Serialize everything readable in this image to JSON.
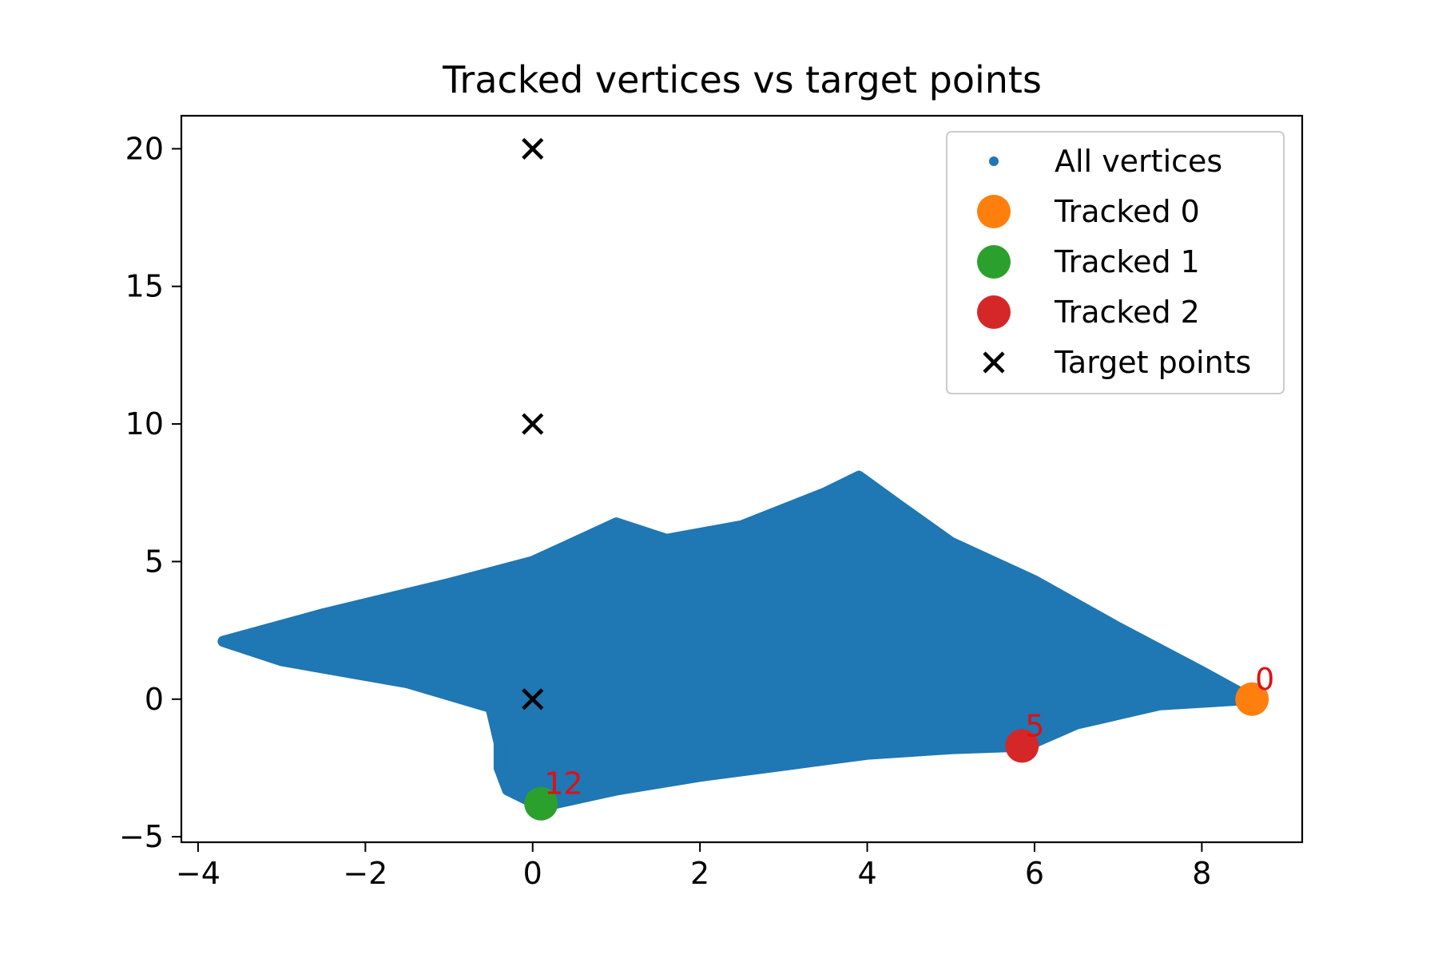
{
  "chart_data": {
    "type": "scatter",
    "title": "Tracked vertices vs target points",
    "xlabel": "",
    "ylabel": "",
    "xlim": [
      -4.2,
      9.2
    ],
    "ylim": [
      -5.2,
      21.2
    ],
    "xticks": [
      {
        "value": -4,
        "label": "−4"
      },
      {
        "value": -2,
        "label": "−2"
      },
      {
        "value": 0,
        "label": "0"
      },
      {
        "value": 2,
        "label": "2"
      },
      {
        "value": 4,
        "label": "4"
      },
      {
        "value": 6,
        "label": "6"
      },
      {
        "value": 8,
        "label": "8"
      }
    ],
    "yticks": [
      {
        "value": -5,
        "label": "−5"
      },
      {
        "value": 0,
        "label": "0"
      },
      {
        "value": 5,
        "label": "5"
      },
      {
        "value": 10,
        "label": "10"
      },
      {
        "value": 15,
        "label": "15"
      },
      {
        "value": 20,
        "label": "20"
      }
    ],
    "grid": false,
    "legend_position": "top-right",
    "series": [
      {
        "name": "All vertices",
        "kind": "vertex-cloud",
        "color": "#1f77b4",
        "outline": [
          [
            -3.7,
            2.1
          ],
          [
            -2.5,
            3.1
          ],
          [
            -1.0,
            4.2
          ],
          [
            0.0,
            5.0
          ],
          [
            0.5,
            5.7
          ],
          [
            1.0,
            6.4
          ],
          [
            1.2,
            6.2
          ],
          [
            1.6,
            5.8
          ],
          [
            2.5,
            6.3
          ],
          [
            3.5,
            7.5
          ],
          [
            3.9,
            8.1
          ],
          [
            4.4,
            7.0
          ],
          [
            5.0,
            5.7
          ],
          [
            6.0,
            4.3
          ],
          [
            7.0,
            2.6
          ],
          [
            8.0,
            1.0
          ],
          [
            8.6,
            0.0
          ],
          [
            7.5,
            -0.2
          ],
          [
            6.5,
            -0.9
          ],
          [
            5.9,
            -1.7
          ],
          [
            5.0,
            -1.8
          ],
          [
            4.0,
            -2.0
          ],
          [
            3.0,
            -2.4
          ],
          [
            2.0,
            -2.8
          ],
          [
            1.0,
            -3.3
          ],
          [
            0.1,
            -3.9
          ],
          [
            -0.3,
            -3.3
          ],
          [
            -0.4,
            -2.5
          ],
          [
            -0.4,
            -1.6
          ],
          [
            -0.5,
            -0.3
          ],
          [
            -1.5,
            0.6
          ],
          [
            -3.0,
            1.4
          ],
          [
            -3.7,
            2.1
          ]
        ]
      },
      {
        "name": "Tracked 0",
        "color": "#ff7f0e",
        "points": [
          {
            "x": 8.6,
            "y": 0.0,
            "label": "0"
          }
        ]
      },
      {
        "name": "Tracked 1",
        "color": "#2ca02c",
        "points": [
          {
            "x": 0.1,
            "y": -3.8,
            "label": "12"
          }
        ]
      },
      {
        "name": "Tracked 2",
        "color": "#d62728",
        "points": [
          {
            "x": 5.85,
            "y": -1.7,
            "label": "5"
          }
        ]
      },
      {
        "name": "Target points",
        "color": "#000000",
        "marker": "x",
        "points": [
          {
            "x": 0,
            "y": 0
          },
          {
            "x": 0,
            "y": 10
          },
          {
            "x": 0,
            "y": 20
          }
        ]
      }
    ]
  }
}
